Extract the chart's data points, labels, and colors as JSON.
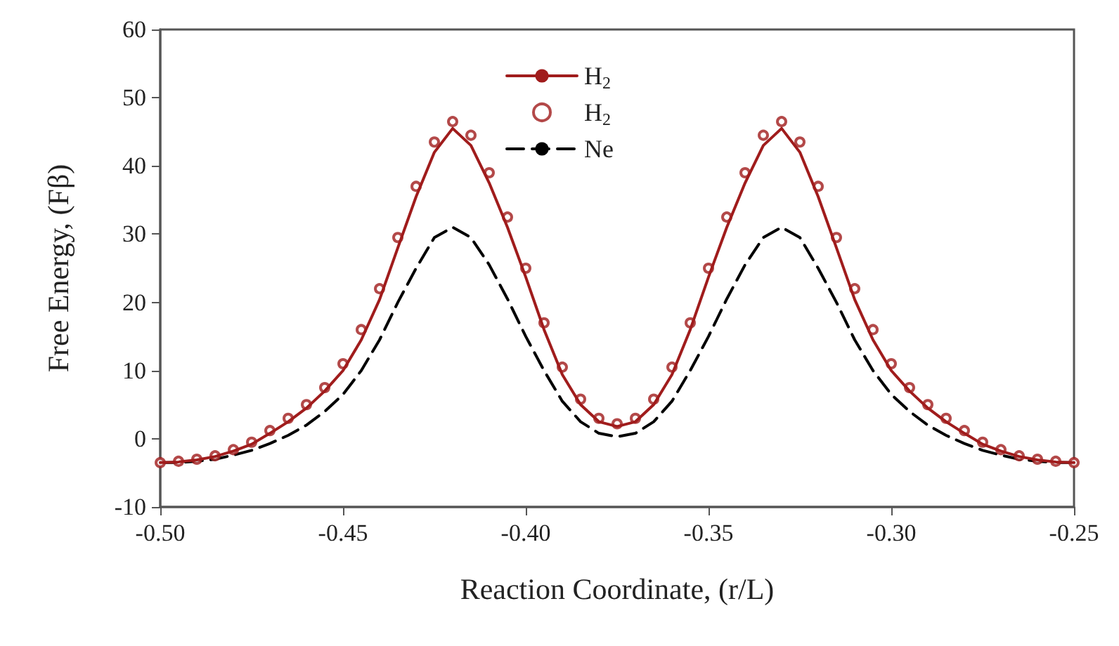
{
  "chart_data": {
    "type": "line",
    "xlabel": "Reaction Coordinate, (r/L)",
    "ylabel": "Free Energy, (Fβ)",
    "x": [
      -0.5,
      -0.495,
      -0.49,
      -0.485,
      -0.48,
      -0.475,
      -0.47,
      -0.465,
      -0.46,
      -0.455,
      -0.45,
      -0.445,
      -0.44,
      -0.435,
      -0.43,
      -0.425,
      -0.42,
      -0.415,
      -0.41,
      -0.405,
      -0.4,
      -0.395,
      -0.39,
      -0.385,
      -0.38,
      -0.375,
      -0.37,
      -0.365,
      -0.36,
      -0.355,
      -0.35,
      -0.345,
      -0.34,
      -0.335,
      -0.33,
      -0.325,
      -0.32,
      -0.315,
      -0.31,
      -0.305,
      -0.3,
      -0.295,
      -0.29,
      -0.285,
      -0.28,
      -0.275,
      -0.27,
      -0.265,
      -0.26,
      -0.255,
      -0.25
    ],
    "series": [
      {
        "name": "H$_{2}$",
        "color": "#a01c1c",
        "line_style": "solid",
        "marker": "none",
        "values": [
          -3.5,
          -3.4,
          -3.1,
          -2.6,
          -1.8,
          -0.8,
          0.8,
          2.5,
          4.5,
          7,
          10,
          14.5,
          20.4,
          28,
          35.5,
          42,
          45.5,
          43,
          37.5,
          31,
          23.7,
          16,
          9.4,
          5,
          2.5,
          1.8,
          2.5,
          5,
          9.4,
          16,
          23.7,
          31,
          37.5,
          43,
          45.5,
          42,
          35.5,
          28,
          20.4,
          14.5,
          10,
          7,
          4.5,
          2.5,
          0.8,
          -0.8,
          -1.8,
          -2.6,
          -3.1,
          -3.4,
          -3.5
        ]
      },
      {
        "name": "H$_{2}$",
        "type": "scatter",
        "color": "#a01c1c",
        "marker": "circle",
        "values": [
          -3.5,
          -3.3,
          -3,
          -2.5,
          -1.6,
          -0.5,
          1.2,
          3,
          5,
          7.5,
          11,
          16,
          22,
          29.5,
          37,
          43.5,
          46.5,
          44.5,
          39,
          32.5,
          25,
          17,
          10.5,
          5.8,
          3,
          2.2,
          3,
          5.8,
          10.5,
          17,
          25,
          32.5,
          39,
          44.5,
          46.5,
          43.5,
          37,
          29.5,
          22,
          16,
          11,
          7.5,
          5,
          3,
          1.2,
          -0.5,
          -1.6,
          -2.5,
          -3,
          -3.3,
          -3.5
        ]
      },
      {
        "name": "Ne",
        "color": "#000000",
        "line_style": "dashed",
        "marker": "none",
        "values": [
          -3.5,
          -3.5,
          -3.3,
          -3,
          -2.4,
          -1.7,
          -0.7,
          0.5,
          2,
          4,
          6.5,
          10,
          14.5,
          20,
          25,
          29.5,
          31,
          29.5,
          25.5,
          20.5,
          15,
          10,
          5.5,
          2.5,
          0.8,
          0.3,
          0.8,
          2.5,
          5.5,
          10,
          15,
          20.5,
          25.5,
          29.5,
          31,
          29.5,
          25,
          20,
          14.5,
          10,
          6.5,
          4,
          2,
          0.5,
          -0.7,
          -1.7,
          -2.4,
          -3,
          -3.3,
          -3.5,
          -3.5
        ]
      }
    ],
    "xlim": [
      -0.5,
      -0.25
    ],
    "xticks": [
      {
        "value": -0.5,
        "label": "-0.50"
      },
      {
        "value": -0.45,
        "label": "-0.45"
      },
      {
        "value": -0.4,
        "label": "-0.40"
      },
      {
        "value": -0.35,
        "label": "-0.35"
      },
      {
        "value": -0.3,
        "label": "-0.30"
      },
      {
        "value": -0.25,
        "label": "-0.25"
      }
    ],
    "ylim": [
      -10,
      60
    ],
    "yticks": [
      -10,
      0,
      10,
      20,
      30,
      40,
      50,
      60
    ],
    "grid": false,
    "legend": "top"
  }
}
